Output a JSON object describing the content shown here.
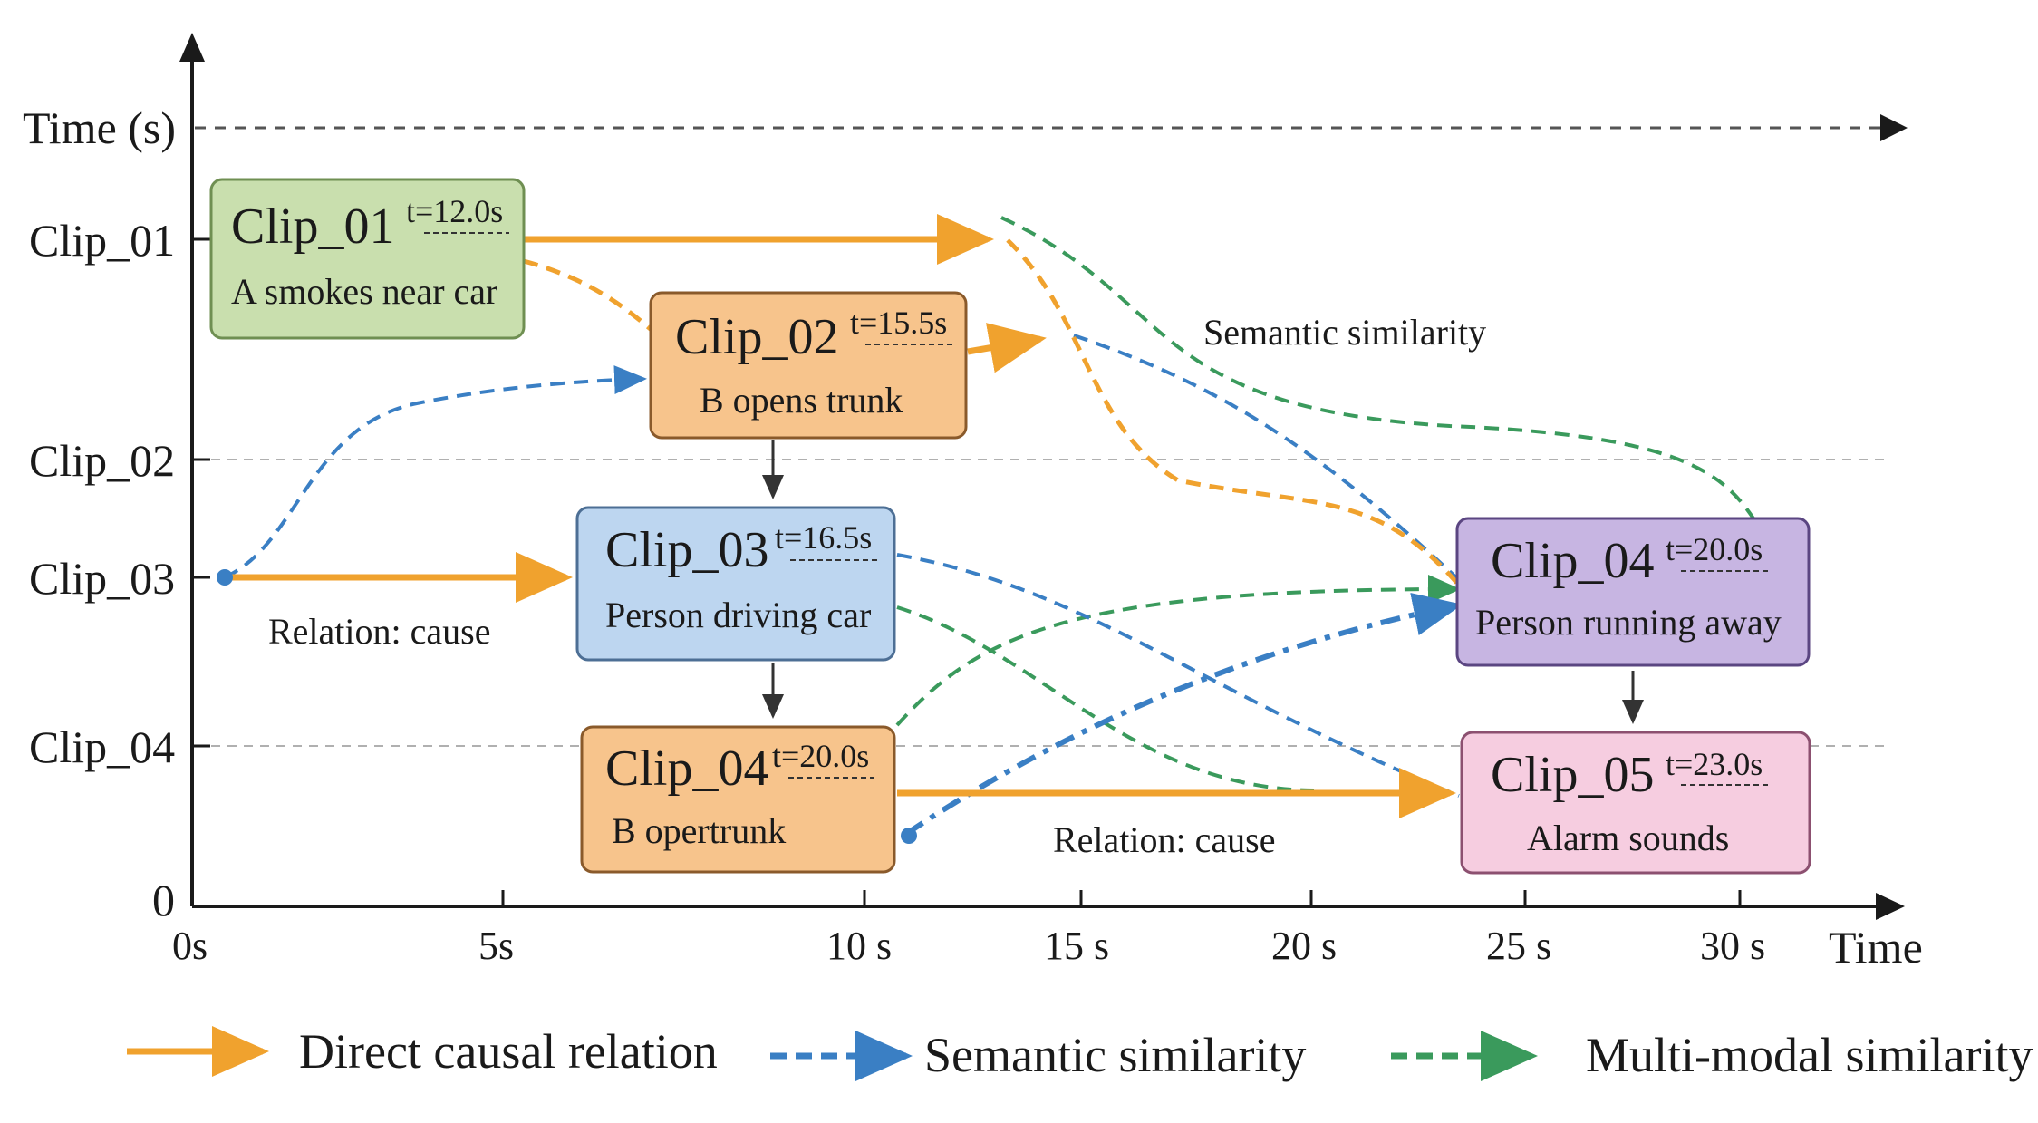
{
  "axes": {
    "y_title": "Time (s)",
    "x_title": "Time",
    "y_ticks": [
      "Clip_01",
      "Clip_02",
      "Clip_03",
      "Clip_04",
      "0"
    ],
    "x_ticks": [
      "0s",
      "5s",
      "10 s",
      "15 s",
      "20 s",
      "25 s",
      "30 s"
    ]
  },
  "clips": [
    {
      "id": "clip01",
      "title": "Clip_01",
      "time": "t=12.0s",
      "desc": "A smokes near car",
      "fill": "#c9dfae",
      "stroke": "#6f8f52"
    },
    {
      "id": "clip02",
      "title": "Clip_02",
      "time": "t=15.5s",
      "desc": "B opens trunk",
      "fill": "#f7c48c",
      "stroke": "#8a5a2b"
    },
    {
      "id": "clip03",
      "title": "Clip_03",
      "time": "t=16.5s",
      "desc": "Person driving car",
      "fill": "#bdd6f0",
      "stroke": "#4d6f95"
    },
    {
      "id": "clip04a",
      "title": "Clip_04",
      "time": "t=20.0s",
      "desc": "B opertrunk",
      "fill": "#f7c48c",
      "stroke": "#8a5a2b"
    },
    {
      "id": "clip04b",
      "title": "Clip_04",
      "time": "t=20.0s",
      "desc": "Person running away",
      "fill": "#c7b5e2",
      "stroke": "#5b4682"
    },
    {
      "id": "clip05",
      "title": "Clip_05",
      "time": "t=23.0s",
      "desc": "Alarm sounds",
      "fill": "#f6cde0",
      "stroke": "#8c5070"
    }
  ],
  "annotations": {
    "semantic_similarity": "Semantic similarity",
    "relation_cause_1": "Relation: cause",
    "relation_cause_2": "Relation: cause"
  },
  "legend": {
    "causal": "Direct causal relation",
    "semantic": "Semantic similarity",
    "multimodal": "Multi-modal similarity"
  },
  "colors": {
    "causal": "#f0a22e",
    "semantic": "#3a7fc4",
    "multimodal": "#3a9a5c",
    "axis": "#1a1a1a",
    "grid": "#b0b0b0"
  }
}
